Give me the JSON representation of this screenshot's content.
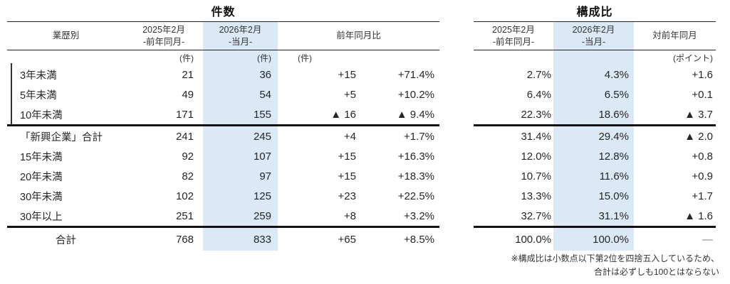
{
  "kensu": {
    "title": "件数",
    "header": {
      "row_header": "業歴別",
      "prev1": "2025年2月",
      "prev2": "-前年同月-",
      "curr1": "2026年2月",
      "curr2": "-当月-",
      "yoy": "前年同月比"
    },
    "units": {
      "prev": "(件)",
      "curr": "(件)",
      "yoy": "(件)"
    },
    "rows": [
      {
        "label": "3年未満",
        "prev": "21",
        "curr": "36",
        "diff": "+15",
        "pct": "+71.4%"
      },
      {
        "label": "5年未満",
        "prev": "49",
        "curr": "54",
        "diff": "+5",
        "pct": "+10.2%"
      },
      {
        "label": "10年未満",
        "prev": "171",
        "curr": "155",
        "diff": "▲ 16",
        "pct": "▲ 9.4%"
      },
      {
        "label": "「新興企業」合計",
        "prev": "241",
        "curr": "245",
        "diff": "+4",
        "pct": "+1.7%"
      },
      {
        "label": "15年未満",
        "prev": "92",
        "curr": "107",
        "diff": "+15",
        "pct": "+16.3%"
      },
      {
        "label": "20年未満",
        "prev": "82",
        "curr": "97",
        "diff": "+15",
        "pct": "+18.3%"
      },
      {
        "label": "30年未満",
        "prev": "102",
        "curr": "125",
        "diff": "+23",
        "pct": "+22.5%"
      },
      {
        "label": "30年以上",
        "prev": "251",
        "curr": "259",
        "diff": "+8",
        "pct": "+3.2%"
      }
    ],
    "total": {
      "label": "合計",
      "prev": "768",
      "curr": "833",
      "diff": "+65",
      "pct": "+8.5%"
    }
  },
  "kousei": {
    "title": "構成比",
    "header": {
      "prev1": "2025年2月",
      "prev2": "-前年同月-",
      "curr1": "2026年2月",
      "curr2": "-当月-",
      "diff": "対前年同月"
    },
    "units": {
      "diff": "(ポイント)"
    },
    "rows": [
      {
        "prev": "2.7%",
        "curr": "4.3%",
        "diff": "+1.6"
      },
      {
        "prev": "6.4%",
        "curr": "6.5%",
        "diff": "+0.1"
      },
      {
        "prev": "22.3%",
        "curr": "18.6%",
        "diff": "▲ 3.7"
      },
      {
        "prev": "31.4%",
        "curr": "29.4%",
        "diff": "▲ 2.0"
      },
      {
        "prev": "12.0%",
        "curr": "12.8%",
        "diff": "+0.8"
      },
      {
        "prev": "10.7%",
        "curr": "11.6%",
        "diff": "+0.9"
      },
      {
        "prev": "13.3%",
        "curr": "15.0%",
        "diff": "+1.7"
      },
      {
        "prev": "32.7%",
        "curr": "31.1%",
        "diff": "▲ 1.6"
      }
    ],
    "total": {
      "prev": "100.0%",
      "curr": "100.0%",
      "diff": "—"
    }
  },
  "footnote": {
    "line1": "※構成比は小数点以下第2位を四捨五入しているため、",
    "line2": "合計は必ずしも100とはならない"
  },
  "colors": {
    "highlight": "#dbe8f5",
    "rule_thin": "#222222",
    "rule_thick": "#111111",
    "text": "#262626"
  }
}
